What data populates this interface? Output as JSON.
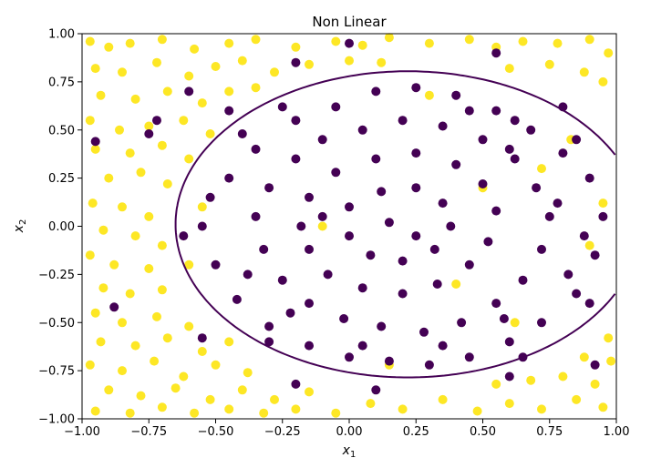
{
  "chart_data": {
    "type": "scatter",
    "title": "Non Linear",
    "xlabel_var": "x",
    "xlabel_sub": "1",
    "ylabel_var": "x",
    "ylabel_sub": "2",
    "xlim": [
      -1.0,
      1.0
    ],
    "ylim": [
      -1.0,
      1.0
    ],
    "x_ticks": [
      -1.0,
      -0.75,
      -0.5,
      -0.25,
      0.0,
      0.25,
      0.5,
      0.75,
      1.0
    ],
    "x_tick_labels": [
      "−1.00",
      "−0.75",
      "−0.50",
      "−0.25",
      "0.00",
      "0.25",
      "0.50",
      "0.75",
      "1.00"
    ],
    "y_ticks": [
      -1.0,
      -0.75,
      -0.5,
      -0.25,
      0.0,
      0.25,
      0.5,
      0.75,
      1.0
    ],
    "y_tick_labels": [
      "−1.00",
      "−0.75",
      "−0.50",
      "−0.25",
      "0.00",
      "0.25",
      "0.50",
      "0.75",
      "1.00"
    ],
    "grid": false,
    "legend": "none",
    "colors": {
      "class_outside": "#fde725",
      "class_inside": "#440154",
      "boundary": "#440154"
    },
    "decision_boundary": {
      "shape": "ellipse",
      "center": [
        0.22,
        0.01
      ],
      "radius_x": 0.87,
      "radius_y": 0.795
    },
    "series": [
      {
        "class": "outside",
        "points": [
          [
            -0.97,
            0.96
          ],
          [
            -0.9,
            0.93
          ],
          [
            -0.82,
            0.95
          ],
          [
            -0.7,
            0.97
          ],
          [
            -0.58,
            0.92
          ],
          [
            -0.45,
            0.95
          ],
          [
            -0.35,
            0.97
          ],
          [
            -0.2,
            0.93
          ],
          [
            -0.05,
            0.96
          ],
          [
            0.05,
            0.94
          ],
          [
            0.15,
            0.98
          ],
          [
            0.3,
            0.95
          ],
          [
            0.45,
            0.97
          ],
          [
            0.55,
            0.93
          ],
          [
            0.65,
            0.96
          ],
          [
            0.78,
            0.95
          ],
          [
            0.9,
            0.97
          ],
          [
            0.97,
            0.9
          ],
          [
            -0.95,
            0.82
          ],
          [
            -0.85,
            0.8
          ],
          [
            -0.72,
            0.85
          ],
          [
            -0.6,
            0.78
          ],
          [
            -0.5,
            0.83
          ],
          [
            -0.4,
            0.86
          ],
          [
            -0.28,
            0.8
          ],
          [
            -0.15,
            0.84
          ],
          [
            0.0,
            0.86
          ],
          [
            0.12,
            0.85
          ],
          [
            0.6,
            0.82
          ],
          [
            0.75,
            0.84
          ],
          [
            0.88,
            0.8
          ],
          [
            0.95,
            0.75
          ],
          [
            -0.93,
            0.68
          ],
          [
            -0.8,
            0.66
          ],
          [
            -0.68,
            0.7
          ],
          [
            -0.55,
            0.64
          ],
          [
            -0.45,
            0.7
          ],
          [
            -0.35,
            0.72
          ],
          [
            -0.97,
            0.55
          ],
          [
            -0.86,
            0.5
          ],
          [
            -0.75,
            0.52
          ],
          [
            -0.62,
            0.55
          ],
          [
            -0.52,
            0.48
          ],
          [
            -0.95,
            0.4
          ],
          [
            -0.82,
            0.38
          ],
          [
            -0.7,
            0.42
          ],
          [
            -0.6,
            0.35
          ],
          [
            -0.9,
            0.25
          ],
          [
            -0.78,
            0.28
          ],
          [
            -0.68,
            0.22
          ],
          [
            -0.96,
            0.12
          ],
          [
            -0.85,
            0.1
          ],
          [
            -0.75,
            0.05
          ],
          [
            -0.92,
            -0.02
          ],
          [
            -0.8,
            -0.05
          ],
          [
            -0.7,
            -0.1
          ],
          [
            -0.97,
            -0.15
          ],
          [
            -0.88,
            -0.2
          ],
          [
            -0.75,
            -0.22
          ],
          [
            -0.92,
            -0.32
          ],
          [
            -0.82,
            -0.35
          ],
          [
            -0.7,
            -0.33
          ],
          [
            -0.95,
            -0.45
          ],
          [
            -0.85,
            -0.5
          ],
          [
            -0.72,
            -0.47
          ],
          [
            -0.6,
            -0.52
          ],
          [
            -0.93,
            -0.6
          ],
          [
            -0.8,
            -0.62
          ],
          [
            -0.68,
            -0.58
          ],
          [
            -0.55,
            -0.65
          ],
          [
            -0.45,
            -0.6
          ],
          [
            -0.97,
            -0.72
          ],
          [
            -0.85,
            -0.75
          ],
          [
            -0.73,
            -0.7
          ],
          [
            -0.62,
            -0.78
          ],
          [
            -0.5,
            -0.72
          ],
          [
            -0.38,
            -0.76
          ],
          [
            -0.9,
            -0.85
          ],
          [
            -0.78,
            -0.88
          ],
          [
            -0.65,
            -0.84
          ],
          [
            -0.52,
            -0.9
          ],
          [
            -0.4,
            -0.85
          ],
          [
            -0.28,
            -0.9
          ],
          [
            -0.15,
            -0.86
          ],
          [
            -0.95,
            -0.96
          ],
          [
            -0.82,
            -0.97
          ],
          [
            -0.7,
            -0.94
          ],
          [
            -0.58,
            -0.97
          ],
          [
            -0.45,
            -0.95
          ],
          [
            -0.32,
            -0.97
          ],
          [
            -0.2,
            -0.95
          ],
          [
            -0.05,
            -0.97
          ],
          [
            0.08,
            -0.92
          ],
          [
            0.2,
            -0.95
          ],
          [
            0.35,
            -0.9
          ],
          [
            0.48,
            -0.96
          ],
          [
            0.6,
            -0.92
          ],
          [
            0.72,
            -0.95
          ],
          [
            0.85,
            -0.9
          ],
          [
            0.95,
            -0.94
          ],
          [
            0.55,
            -0.82
          ],
          [
            0.68,
            -0.8
          ],
          [
            0.8,
            -0.78
          ],
          [
            0.92,
            -0.82
          ],
          [
            0.98,
            -0.7
          ],
          [
            0.88,
            -0.68
          ],
          [
            0.97,
            -0.58
          ],
          [
            0.5,
            0.2
          ],
          [
            0.72,
            0.3
          ],
          [
            0.83,
            0.45
          ],
          [
            -0.1,
            0.0
          ],
          [
            0.4,
            -0.3
          ],
          [
            0.62,
            -0.5
          ],
          [
            0.9,
            -0.1
          ],
          [
            0.95,
            0.12
          ],
          [
            -0.55,
            0.1
          ],
          [
            -0.6,
            -0.2
          ],
          [
            0.3,
            0.68
          ],
          [
            0.15,
            -0.72
          ]
        ]
      },
      {
        "class": "inside",
        "points": [
          [
            -0.45,
            0.25
          ],
          [
            -0.35,
            0.4
          ],
          [
            -0.2,
            0.55
          ],
          [
            -0.05,
            0.62
          ],
          [
            0.1,
            0.7
          ],
          [
            0.25,
            0.72
          ],
          [
            0.4,
            0.68
          ],
          [
            0.55,
            0.6
          ],
          [
            0.68,
            0.5
          ],
          [
            0.8,
            0.38
          ],
          [
            0.9,
            0.25
          ],
          [
            0.95,
            0.05
          ],
          [
            0.92,
            -0.15
          ],
          [
            0.85,
            -0.35
          ],
          [
            0.72,
            -0.5
          ],
          [
            0.6,
            -0.6
          ],
          [
            0.45,
            -0.68
          ],
          [
            0.3,
            -0.72
          ],
          [
            0.15,
            -0.7
          ],
          [
            0.0,
            -0.68
          ],
          [
            -0.15,
            -0.62
          ],
          [
            -0.3,
            -0.52
          ],
          [
            -0.42,
            -0.38
          ],
          [
            -0.5,
            -0.2
          ],
          [
            -0.55,
            0.0
          ],
          [
            -0.52,
            0.15
          ],
          [
            -0.3,
            0.2
          ],
          [
            -0.2,
            0.35
          ],
          [
            -0.1,
            0.45
          ],
          [
            0.05,
            0.5
          ],
          [
            0.2,
            0.55
          ],
          [
            0.35,
            0.52
          ],
          [
            0.5,
            0.45
          ],
          [
            0.62,
            0.35
          ],
          [
            0.7,
            0.2
          ],
          [
            0.75,
            0.05
          ],
          [
            0.72,
            -0.12
          ],
          [
            0.65,
            -0.28
          ],
          [
            0.55,
            -0.4
          ],
          [
            0.42,
            -0.5
          ],
          [
            0.28,
            -0.55
          ],
          [
            0.12,
            -0.52
          ],
          [
            -0.02,
            -0.48
          ],
          [
            -0.15,
            -0.4
          ],
          [
            -0.25,
            -0.28
          ],
          [
            -0.32,
            -0.12
          ],
          [
            -0.35,
            0.05
          ],
          [
            -0.15,
            0.15
          ],
          [
            -0.05,
            0.28
          ],
          [
            0.1,
            0.35
          ],
          [
            0.25,
            0.38
          ],
          [
            0.4,
            0.32
          ],
          [
            0.5,
            0.22
          ],
          [
            0.55,
            0.08
          ],
          [
            0.52,
            -0.08
          ],
          [
            0.45,
            -0.2
          ],
          [
            0.33,
            -0.3
          ],
          [
            0.2,
            -0.35
          ],
          [
            0.05,
            -0.32
          ],
          [
            -0.08,
            -0.25
          ],
          [
            -0.15,
            -0.12
          ],
          [
            -0.18,
            0.0
          ],
          [
            0.0,
            0.1
          ],
          [
            0.12,
            0.18
          ],
          [
            0.25,
            0.2
          ],
          [
            0.35,
            0.12
          ],
          [
            0.38,
            0.0
          ],
          [
            0.32,
            -0.12
          ],
          [
            0.2,
            -0.18
          ],
          [
            0.08,
            -0.15
          ],
          [
            0.0,
            -0.05
          ],
          [
            0.15,
            0.02
          ],
          [
            0.25,
            -0.05
          ],
          [
            -0.4,
            0.48
          ],
          [
            -0.25,
            0.62
          ],
          [
            0.45,
            0.6
          ],
          [
            0.62,
            0.55
          ],
          [
            0.78,
            0.12
          ],
          [
            0.82,
            -0.25
          ],
          [
            -0.38,
            -0.25
          ],
          [
            -0.22,
            -0.45
          ],
          [
            0.05,
            -0.62
          ],
          [
            0.35,
            -0.62
          ],
          [
            0.58,
            -0.48
          ],
          [
            -0.1,
            0.05
          ],
          [
            0.6,
            0.4
          ],
          [
            -0.45,
            0.6
          ],
          [
            -0.3,
            -0.6
          ],
          [
            0.65,
            -0.68
          ],
          [
            0.85,
            0.45
          ],
          [
            -0.2,
            0.85
          ],
          [
            0.0,
            0.95
          ],
          [
            0.55,
            0.9
          ],
          [
            0.8,
            0.62
          ],
          [
            0.88,
            -0.05
          ],
          [
            0.6,
            -0.78
          ],
          [
            -0.6,
            0.7
          ],
          [
            -0.62,
            -0.05
          ],
          [
            -0.75,
            0.48
          ],
          [
            -0.88,
            -0.42
          ],
          [
            -0.72,
            0.55
          ],
          [
            0.9,
            -0.4
          ],
          [
            0.92,
            -0.72
          ],
          [
            -0.95,
            0.44
          ],
          [
            -0.55,
            -0.58
          ],
          [
            0.1,
            -0.85
          ],
          [
            -0.2,
            -0.82
          ]
        ]
      }
    ]
  }
}
